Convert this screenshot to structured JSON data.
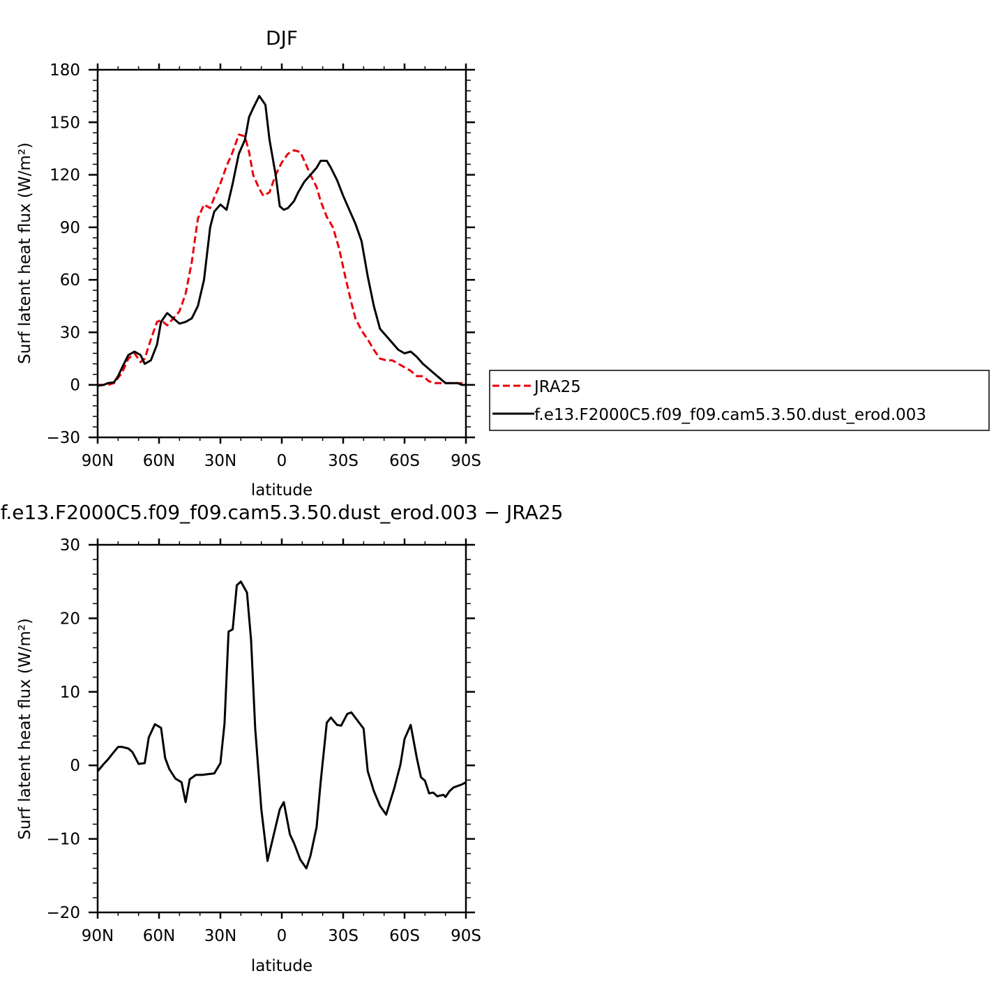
{
  "figure": {
    "colors": {
      "model": "#000000",
      "obs": "#e8000b",
      "axes": "#000000",
      "background": "#ffffff"
    }
  },
  "chart_data": [
    {
      "type": "line",
      "title": "DJF",
      "xlabel": "latitude",
      "ylabel": "Surf latent heat flux (W/m²)",
      "xlim": [
        -90,
        90
      ],
      "ylim": [
        -30,
        180
      ],
      "xticks": [
        -90,
        -60,
        -30,
        0,
        30,
        60,
        90
      ],
      "xtick_labels": [
        "90N",
        "60N",
        "30N",
        "0",
        "30S",
        "60S",
        "90S"
      ],
      "yticks": [
        -30,
        0,
        30,
        60,
        90,
        120,
        150,
        180
      ],
      "ytick_labels": [
        "−30",
        "0",
        "30",
        "60",
        "90",
        "120",
        "150",
        "180"
      ],
      "legend": {
        "placement": "right, outside plot"
      },
      "series": [
        {
          "name": "JRA25",
          "style": "dashed",
          "color": "#e8000b",
          "x": [
            -90,
            -85,
            -82,
            -78,
            -75,
            -72,
            -69,
            -67,
            -64,
            -61,
            -59,
            -56,
            -53,
            -50,
            -47,
            -44,
            -41,
            -38,
            -35,
            -33,
            -30,
            -27,
            -24,
            -21,
            -18,
            -16,
            -14,
            -11,
            -9,
            -6,
            -3,
            0,
            3,
            6,
            9,
            11,
            14,
            17,
            19,
            22,
            25,
            28,
            31,
            34,
            36,
            39,
            42,
            45,
            48,
            51,
            54,
            57,
            60,
            63,
            66,
            69,
            72,
            75,
            78,
            80,
            83,
            86,
            90
          ],
          "y": [
            0,
            0,
            1,
            7,
            15,
            18,
            13,
            15,
            26,
            36,
            37,
            34,
            38,
            42,
            52,
            70,
            95,
            103,
            101,
            107,
            115,
            125,
            133,
            143,
            142,
            133,
            120,
            112,
            108,
            110,
            120,
            127,
            132,
            134,
            133,
            128,
            120,
            113,
            105,
            96,
            90,
            78,
            62,
            47,
            38,
            31,
            26,
            20,
            15,
            14,
            14,
            12,
            10,
            8,
            5,
            5,
            2,
            1,
            1,
            1,
            1,
            1,
            1
          ]
        },
        {
          "name": "f.e13.F2000C5.f09_f09.cam5.3.50.dust_erod.003",
          "style": "solid",
          "color": "#000000",
          "x": [
            -90,
            -87,
            -85,
            -82,
            -80,
            -78,
            -75,
            -72,
            -69,
            -67,
            -64,
            -61,
            -59,
            -56,
            -53,
            -50,
            -47,
            -44,
            -41,
            -38,
            -35,
            -33,
            -30,
            -27,
            -24,
            -21,
            -18,
            -16,
            -14,
            -11,
            -8,
            -6,
            -3,
            -1,
            1,
            3,
            6,
            8,
            11,
            14,
            17,
            19,
            22,
            24,
            27,
            30,
            33,
            36,
            39,
            42,
            45,
            48,
            51,
            54,
            57,
            60,
            63,
            66,
            69,
            72,
            75,
            78,
            80,
            83,
            86,
            88,
            90
          ],
          "y": [
            -0.5,
            0,
            1,
            1.5,
            5,
            10,
            17,
            19,
            17,
            12,
            14,
            23,
            36,
            41,
            38,
            35,
            36,
            38,
            45,
            60,
            90,
            99,
            103,
            100,
            115,
            132,
            140,
            153,
            158,
            165,
            160,
            140,
            120,
            102,
            100,
            101,
            105,
            110,
            116,
            120,
            124,
            128,
            128,
            124,
            117,
            108,
            100,
            92,
            82,
            62,
            45,
            32,
            28,
            24,
            20,
            18,
            19,
            16,
            12,
            9,
            6,
            3,
            1,
            1,
            1,
            0,
            0
          ]
        }
      ]
    },
    {
      "type": "line",
      "title": "f.e13.F2000C5.f09_f09.cam5.3.50.dust_erod.003 − JRA25",
      "xlabel": "latitude",
      "ylabel": "Surf latent heat flux (W/m²)",
      "xlim": [
        -90,
        90
      ],
      "ylim": [
        -20,
        30
      ],
      "xticks": [
        -90,
        -60,
        -30,
        0,
        30,
        60,
        90
      ],
      "xtick_labels": [
        "90N",
        "60N",
        "30N",
        "0",
        "30S",
        "60S",
        "90S"
      ],
      "yticks": [
        -20,
        -10,
        0,
        10,
        20,
        30
      ],
      "ytick_labels": [
        "−20",
        "−10",
        "0",
        "10",
        "20",
        "30"
      ],
      "series": [
        {
          "style": "solid",
          "color": "#000000",
          "x": [
            -90,
            -87,
            -85,
            -83,
            -80,
            -78,
            -75,
            -73,
            -70,
            -67,
            -65,
            -62,
            -59,
            -57,
            -55,
            -52,
            -49,
            -47,
            -45,
            -42,
            -39,
            -36,
            -33,
            -30,
            -28,
            -26,
            -24,
            -22,
            -20,
            -17,
            -15,
            -13,
            -10,
            -7,
            -4,
            -1,
            1,
            4,
            6,
            9,
            12,
            14,
            17,
            19,
            22,
            24,
            27,
            29,
            32,
            34,
            37,
            40,
            42,
            45,
            48,
            51,
            55,
            58,
            60,
            63,
            66,
            68,
            70,
            72,
            74,
            76,
            79,
            80,
            82,
            84,
            86,
            88,
            90
          ],
          "y": [
            -0.8,
            0.2,
            0.8,
            1.5,
            2.5,
            2.5,
            2.3,
            1.8,
            0.2,
            0.3,
            3.8,
            5.6,
            5.1,
            1.0,
            -0.5,
            -1.8,
            -2.3,
            -5.0,
            -1.9,
            -1.3,
            -1.3,
            -1.2,
            -1.1,
            0.3,
            5.7,
            18.2,
            18.5,
            24.5,
            25.0,
            23.5,
            17,
            5,
            -6,
            -13,
            -9.5,
            -6,
            -5,
            -9.4,
            -10.6,
            -12.8,
            -14.0,
            -12.3,
            -8.4,
            -2.3,
            5.8,
            6.5,
            5.5,
            5.4,
            7.0,
            7.2,
            6.1,
            5.0,
            -0.8,
            -3.5,
            -5.5,
            -6.7,
            -3.1,
            0.1,
            3.6,
            5.5,
            1.0,
            -1.6,
            -2.1,
            -3.8,
            -3.7,
            -4.2,
            -4.0,
            -4.3,
            -3.5,
            -3.0,
            -2.8,
            -2.6,
            -2.3
          ]
        }
      ]
    }
  ]
}
